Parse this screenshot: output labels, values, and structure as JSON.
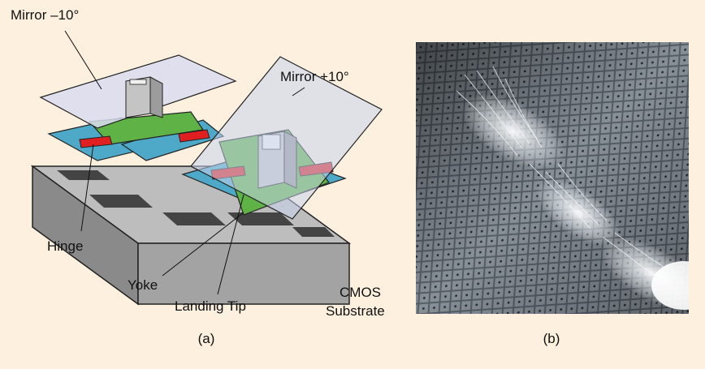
{
  "diagram": {
    "labels": {
      "mirror_minus": "Mirror –10°",
      "mirror_plus": "Mirror +10°",
      "hinge": "Hinge",
      "yoke": "Yoke",
      "landing_tip": "Landing Tip",
      "cmos_line1": "CMOS",
      "cmos_line2": "Substrate"
    },
    "captions": {
      "a": "(a)",
      "b": "(b)"
    },
    "colors": {
      "background": "#fdf0df",
      "mirror": "#d9dcf0",
      "yoke": "#5fb346",
      "hinge": "#e02020",
      "hinge_layer": "#4ea8c8",
      "substrate": "#9a9a9a",
      "electrode": "#444444"
    }
  }
}
